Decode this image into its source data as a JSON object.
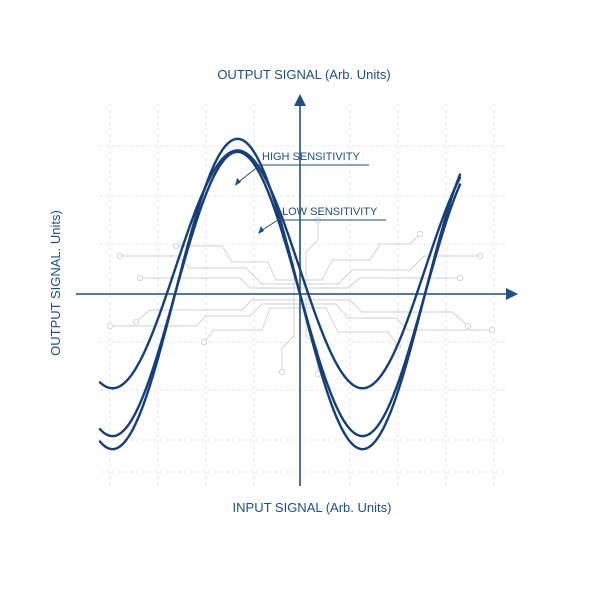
{
  "chart_data": {
    "type": "line",
    "title": "OUTPUT SIGNAL (Arb. Units)",
    "xlabel": "INPUT SIGNAL (Arb. Units)",
    "ylabel": "OUTPUT SIGNAL. Units)",
    "ticks_shown": false,
    "grid": true,
    "legend": "none",
    "annotations": [
      {
        "text": "HIGH SENSITIVITY",
        "series": 0
      },
      {
        "text": "LOW SENSITIVITY",
        "series": 1
      }
    ],
    "series": [
      {
        "name": "HIGH SENSITIVITY",
        "amplitude": 1.07,
        "bias": 0.0
      },
      {
        "name": "LOW SENSITIVITY",
        "amplitude": 0.82,
        "bias": 0.17
      }
    ],
    "guide_curve": {
      "amplitude": 0.98,
      "bias": 0.0
    },
    "x_range": [
      -1.0,
      0.8
    ],
    "period": 1.25,
    "colors": {
      "curve": "#163f7a",
      "axis": "#1f4e86",
      "grid": "#d9dde3",
      "trace": "#c9d1db"
    }
  }
}
